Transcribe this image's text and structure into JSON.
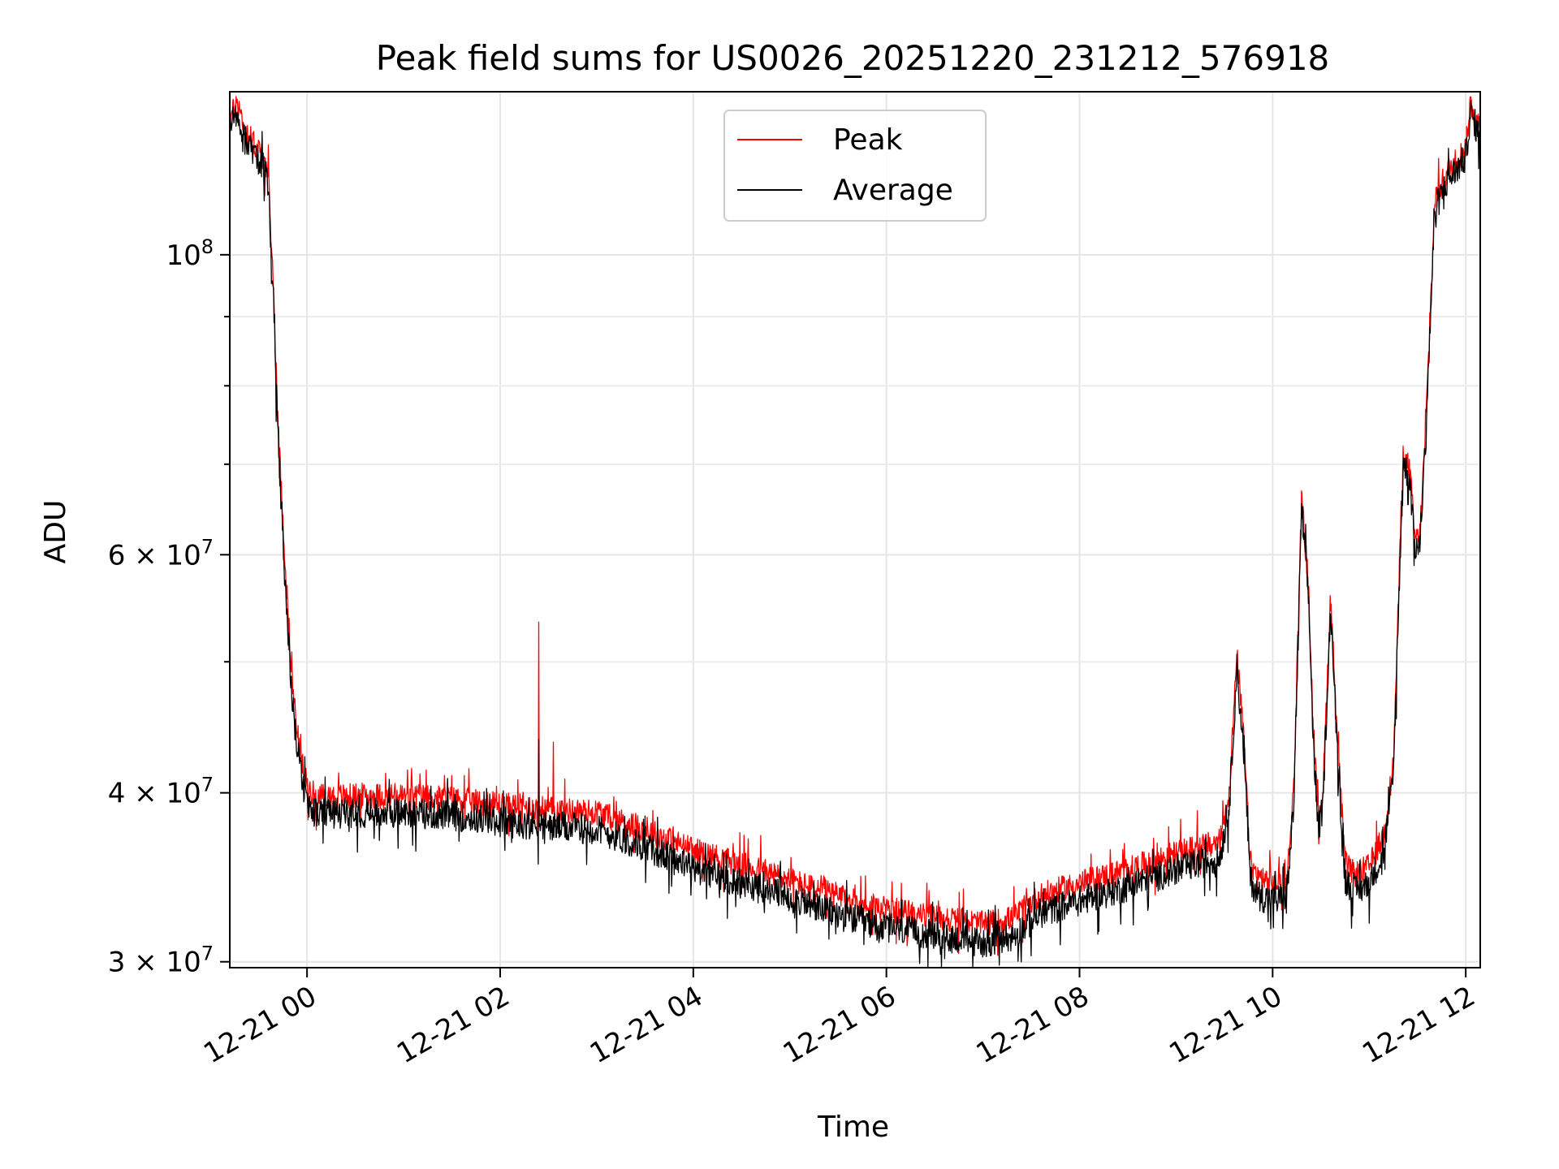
{
  "chart_data": {
    "type": "line",
    "title": "Peak field sums for US0026_20251220_231212_576918",
    "xlabel": "Time",
    "ylabel": "ADU",
    "yscale": "log",
    "ylim": [
      29700000,
      132000000
    ],
    "xlim_hours": [
      -0.8,
      12.15
    ],
    "x_unit": "hours after 2025-12-21 00:00",
    "grid": true,
    "legend_position": "upper center",
    "x_ticks": [
      {
        "value": 0,
        "label": "12-21 00"
      },
      {
        "value": 2,
        "label": "12-21 02"
      },
      {
        "value": 4,
        "label": "12-21 04"
      },
      {
        "value": 6,
        "label": "12-21 06"
      },
      {
        "value": 8,
        "label": "12-21 08"
      },
      {
        "value": 10,
        "label": "12-21 10"
      },
      {
        "value": 12,
        "label": "12-21 12"
      }
    ],
    "y_ticks": [
      {
        "value": 30000000,
        "label_base": "3",
        "label_exp": "7"
      },
      {
        "value": 40000000,
        "label_base": "4",
        "label_exp": "7"
      },
      {
        "value": 60000000,
        "label_base": "6",
        "label_exp": "7"
      },
      {
        "value": 100000000,
        "label_base": "",
        "label_exp": "8"
      }
    ],
    "y_minor_ticks": [
      50000000,
      70000000,
      80000000,
      90000000
    ],
    "series": [
      {
        "name": "Peak",
        "color": "#ff0000",
        "noise_scale": 0.022,
        "points": [
          [
            -0.8,
            126000000
          ],
          [
            -0.72,
            130000000
          ],
          [
            -0.65,
            124000000
          ],
          [
            -0.55,
            121000000
          ],
          [
            -0.45,
            118000000
          ],
          [
            -0.4,
            114000000
          ],
          [
            -0.35,
            95000000
          ],
          [
            -0.3,
            75000000
          ],
          [
            -0.22,
            58000000
          ],
          [
            -0.15,
            48000000
          ],
          [
            -0.08,
            43000000
          ],
          [
            0.0,
            40500000
          ],
          [
            0.1,
            39700000
          ],
          [
            0.5,
            39800000
          ],
          [
            1.0,
            39800000
          ],
          [
            1.5,
            39600000
          ],
          [
            2.0,
            39200000
          ],
          [
            2.5,
            38900000
          ],
          [
            3.0,
            38700000
          ],
          [
            3.5,
            37600000
          ],
          [
            4.0,
            36300000
          ],
          [
            4.5,
            35400000
          ],
          [
            5.0,
            34500000
          ],
          [
            5.5,
            33500000
          ],
          [
            6.0,
            32800000
          ],
          [
            6.5,
            32400000
          ],
          [
            7.0,
            32000000
          ],
          [
            7.3,
            32300000
          ],
          [
            7.6,
            33600000
          ],
          [
            8.0,
            34300000
          ],
          [
            8.5,
            35100000
          ],
          [
            9.0,
            36100000
          ],
          [
            9.45,
            36800000
          ],
          [
            9.55,
            40000000
          ],
          [
            9.63,
            50500000
          ],
          [
            9.7,
            44000000
          ],
          [
            9.77,
            35500000
          ],
          [
            9.85,
            34600000
          ],
          [
            10.0,
            34300000
          ],
          [
            10.15,
            34600000
          ],
          [
            10.22,
            40500000
          ],
          [
            10.3,
            66000000
          ],
          [
            10.37,
            57000000
          ],
          [
            10.42,
            45000000
          ],
          [
            10.47,
            38500000
          ],
          [
            10.52,
            40000000
          ],
          [
            10.6,
            56000000
          ],
          [
            10.67,
            44000000
          ],
          [
            10.75,
            35500000
          ],
          [
            10.85,
            34800000
          ],
          [
            11.0,
            35300000
          ],
          [
            11.15,
            37200000
          ],
          [
            11.25,
            42000000
          ],
          [
            11.35,
            71000000
          ],
          [
            11.42,
            69500000
          ],
          [
            11.47,
            62000000
          ],
          [
            11.52,
            61500000
          ],
          [
            11.58,
            73000000
          ],
          [
            11.68,
            110000000
          ],
          [
            11.8,
            115000000
          ],
          [
            12.0,
            120000000
          ],
          [
            12.05,
            129500000
          ],
          [
            12.15,
            124000000
          ]
        ],
        "spikes": [
          [
            2.4,
            53500000
          ],
          [
            2.55,
            43600000
          ],
          [
            1.5,
            41200000
          ],
          [
            4.7,
            37200000
          ],
          [
            9.22,
            38800000
          ]
        ]
      },
      {
        "name": "Average",
        "color": "#000000",
        "noise_scale": 0.026,
        "points": [
          [
            -0.8,
            124000000
          ],
          [
            -0.72,
            128000000
          ],
          [
            -0.65,
            122000000
          ],
          [
            -0.55,
            119000000
          ],
          [
            -0.45,
            116000000
          ],
          [
            -0.4,
            112000000
          ],
          [
            -0.35,
            93000000
          ],
          [
            -0.3,
            73000000
          ],
          [
            -0.22,
            56000000
          ],
          [
            -0.15,
            46500000
          ],
          [
            -0.08,
            42000000
          ],
          [
            0.0,
            39200000
          ],
          [
            0.1,
            38600000
          ],
          [
            0.5,
            38700000
          ],
          [
            1.0,
            38700000
          ],
          [
            1.5,
            38500000
          ],
          [
            2.0,
            38100000
          ],
          [
            2.5,
            37800000
          ],
          [
            3.0,
            37600000
          ],
          [
            3.5,
            36500000
          ],
          [
            4.0,
            35200000
          ],
          [
            4.5,
            34300000
          ],
          [
            5.0,
            33500000
          ],
          [
            5.5,
            32500000
          ],
          [
            6.0,
            31800000
          ],
          [
            6.5,
            31400000
          ],
          [
            7.0,
            31000000
          ],
          [
            7.3,
            31300000
          ],
          [
            7.6,
            32600000
          ],
          [
            8.0,
            33300000
          ],
          [
            8.5,
            34100000
          ],
          [
            9.0,
            35100000
          ],
          [
            9.45,
            35800000
          ],
          [
            9.55,
            39000000
          ],
          [
            9.63,
            49500000
          ],
          [
            9.7,
            43000000
          ],
          [
            9.77,
            34500000
          ],
          [
            9.85,
            33600000
          ],
          [
            10.0,
            33300000
          ],
          [
            10.15,
            33600000
          ],
          [
            10.22,
            39500000
          ],
          [
            10.3,
            65000000
          ],
          [
            10.37,
            56000000
          ],
          [
            10.42,
            44000000
          ],
          [
            10.47,
            37500000
          ],
          [
            10.52,
            39000000
          ],
          [
            10.6,
            55000000
          ],
          [
            10.67,
            43000000
          ],
          [
            10.75,
            34500000
          ],
          [
            10.85,
            33800000
          ],
          [
            11.0,
            34300000
          ],
          [
            11.15,
            36200000
          ],
          [
            11.25,
            41000000
          ],
          [
            11.35,
            70000000
          ],
          [
            11.42,
            68500000
          ],
          [
            11.47,
            61000000
          ],
          [
            11.52,
            60500000
          ],
          [
            11.58,
            72000000
          ],
          [
            11.68,
            108000000
          ],
          [
            11.8,
            113000000
          ],
          [
            12.0,
            118000000
          ],
          [
            12.05,
            127500000
          ],
          [
            12.15,
            122000000
          ]
        ],
        "spikes": [
          [
            2.4,
            43800000
          ]
        ]
      }
    ]
  }
}
